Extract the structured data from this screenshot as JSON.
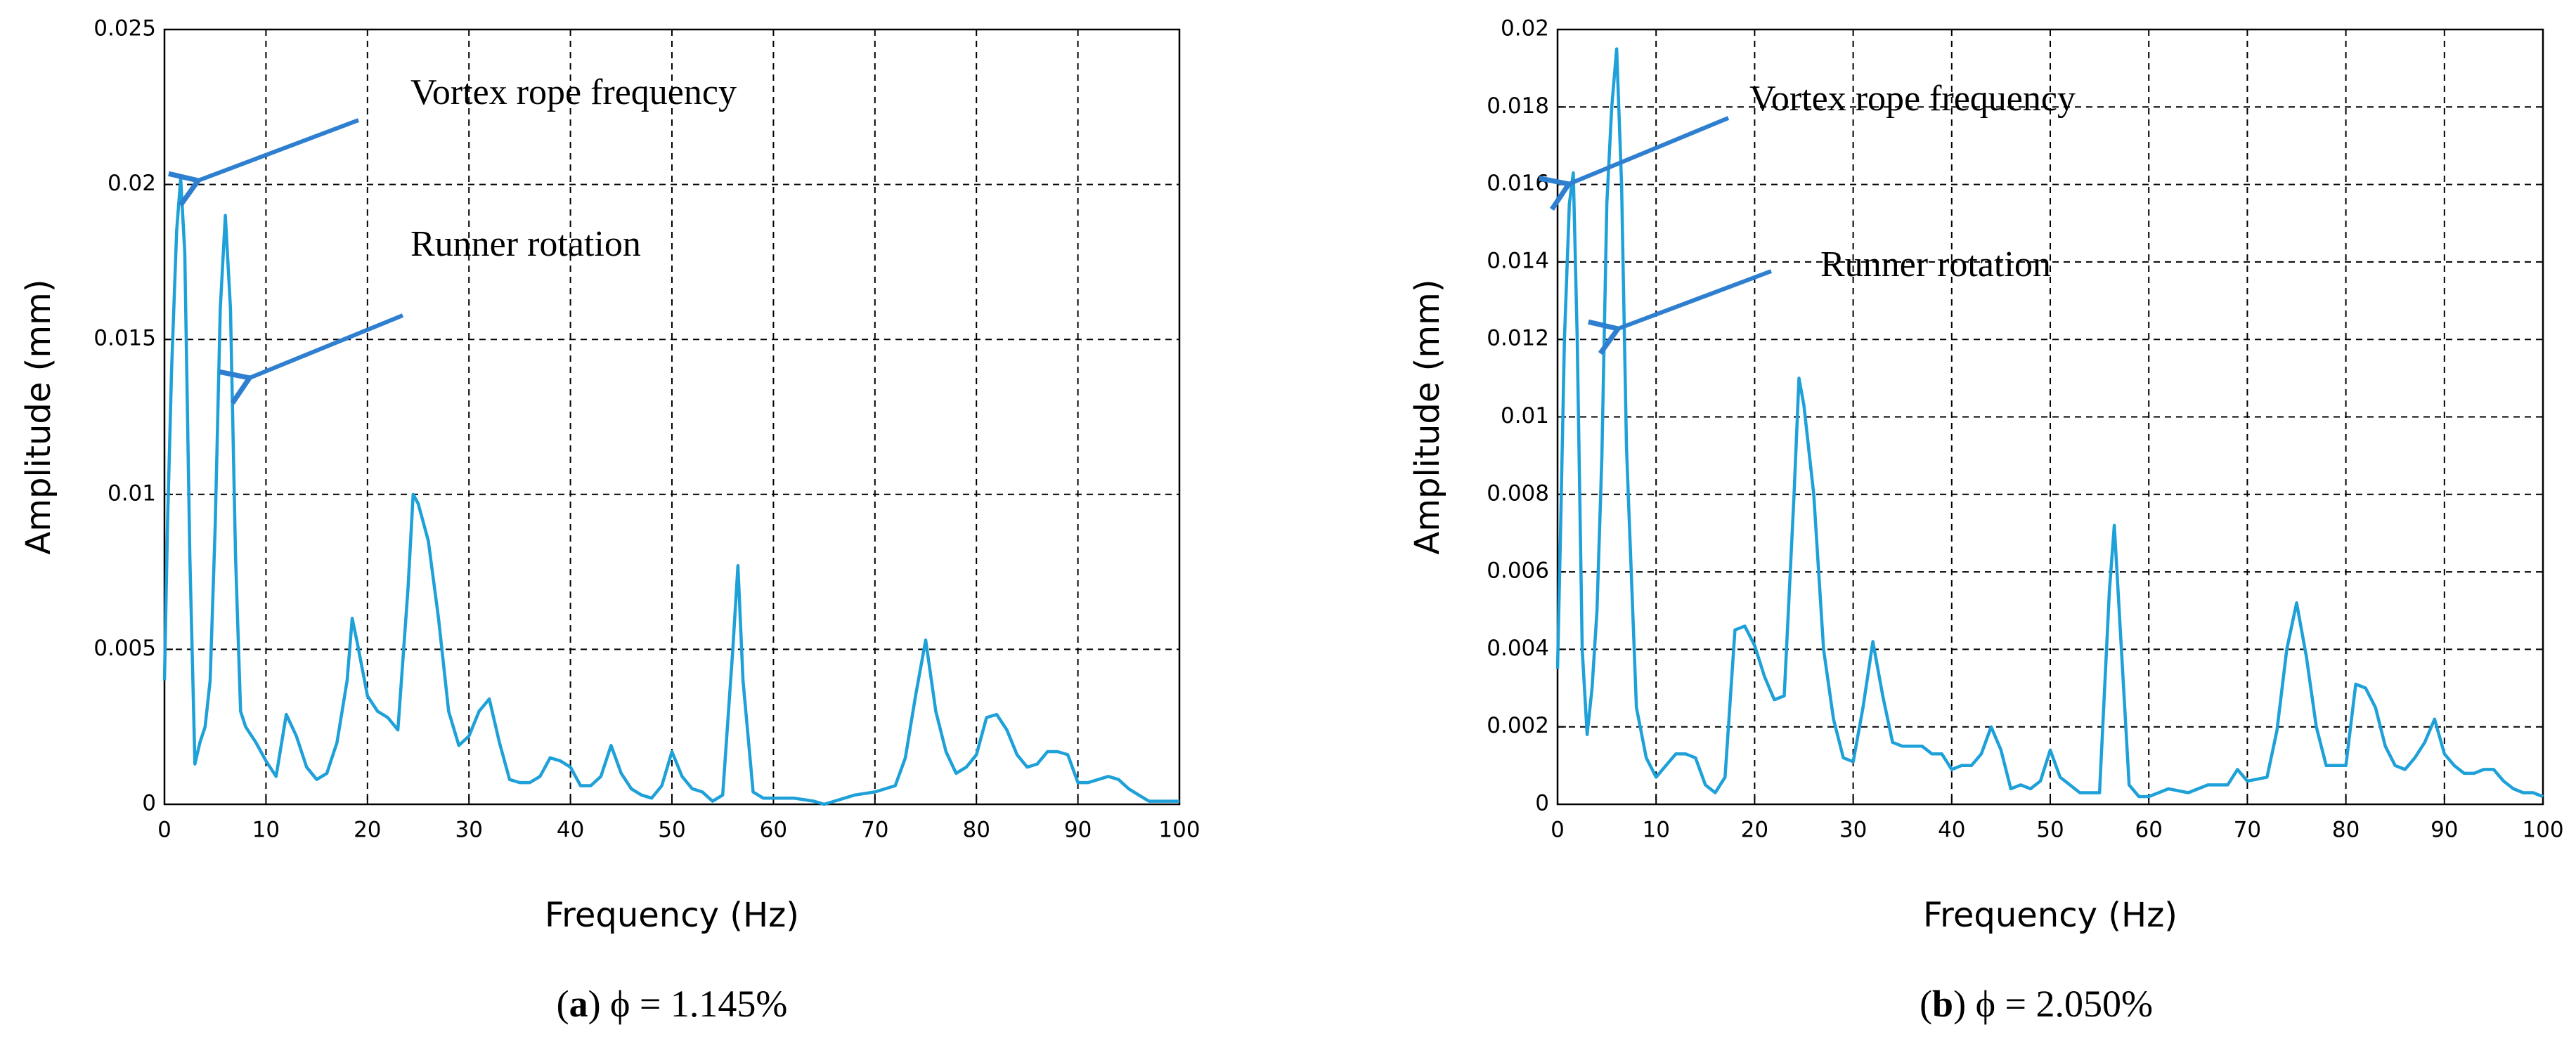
{
  "chart_data": [
    {
      "type": "line",
      "xlabel": "Frequency (Hz)",
      "ylabel": "Amplitude (mm)",
      "caption_parts": [
        "(",
        "a",
        ") ϕ = 1.145%"
      ],
      "annotations": [
        "Vortex rope frequency",
        "Runner rotation"
      ],
      "color": "#1ea0d8",
      "grid": true,
      "xlim": [
        0,
        100
      ],
      "xticks": [
        0,
        10,
        20,
        30,
        40,
        50,
        60,
        70,
        80,
        90,
        100
      ],
      "ylim": [
        0,
        0.025
      ],
      "yticks": [
        0,
        0.005,
        0.01,
        0.015,
        0.02,
        0.025
      ],
      "x": [
        0,
        0.3,
        0.7,
        1.2,
        1.6,
        2,
        2.5,
        3,
        3.5,
        4,
        4.5,
        5,
        5.5,
        6,
        6.5,
        7,
        7.5,
        8,
        9,
        10,
        11,
        12,
        13,
        14,
        15,
        16,
        17,
        18,
        18.5,
        19,
        20,
        21,
        22,
        23,
        24,
        24.5,
        25,
        26,
        27,
        28,
        29,
        30,
        31,
        32,
        33,
        34,
        35,
        36,
        37,
        38,
        39,
        40,
        41,
        42,
        43,
        44,
        45,
        46,
        47,
        48,
        49,
        50,
        51,
        52,
        53,
        54,
        55,
        56,
        56.5,
        57,
        58,
        59,
        60,
        62,
        64,
        65,
        66,
        68,
        70,
        72,
        73,
        74,
        75,
        76,
        77,
        78,
        79,
        80,
        81,
        82,
        83,
        84,
        85,
        86,
        87,
        88,
        89,
        90,
        91,
        92,
        93,
        94,
        95,
        96,
        97,
        98,
        100
      ],
      "values": [
        0.004,
        0.009,
        0.014,
        0.0185,
        0.0202,
        0.0178,
        0.008,
        0.0013,
        0.002,
        0.0025,
        0.004,
        0.009,
        0.016,
        0.019,
        0.016,
        0.008,
        0.003,
        0.0025,
        0.002,
        0.0014,
        0.0009,
        0.0029,
        0.0022,
        0.0012,
        0.0008,
        0.001,
        0.002,
        0.004,
        0.006,
        0.0052,
        0.0035,
        0.003,
        0.0028,
        0.0024,
        0.007,
        0.01,
        0.0097,
        0.0085,
        0.006,
        0.003,
        0.0019,
        0.0022,
        0.003,
        0.0034,
        0.002,
        0.0008,
        0.0007,
        0.0007,
        0.0009,
        0.0015,
        0.0014,
        0.0012,
        0.0006,
        0.0006,
        0.0009,
        0.0019,
        0.001,
        0.0005,
        0.0003,
        0.0002,
        0.0006,
        0.0017,
        0.0009,
        0.0005,
        0.0004,
        0.0001,
        0.0003,
        0.005,
        0.0077,
        0.004,
        0.0004,
        0.0002,
        0.0002,
        0.0002,
        0.0001,
        0,
        0.0001,
        0.0003,
        0.0004,
        0.0006,
        0.0015,
        0.0035,
        0.0053,
        0.003,
        0.0017,
        0.001,
        0.0012,
        0.0016,
        0.0028,
        0.0029,
        0.0024,
        0.0016,
        0.0012,
        0.0013,
        0.0017,
        0.0017,
        0.0016,
        0.0007,
        0.0007,
        0.0008,
        0.0009,
        0.0008,
        0.0005,
        0.0003,
        0.0001,
        0.0001,
        0.0001
      ]
    },
    {
      "type": "line",
      "xlabel": "Frequency (Hz)",
      "ylabel": "Amplitude (mm)",
      "caption_parts": [
        "(",
        "b",
        ") ϕ = 2.050%"
      ],
      "annotations": [
        "Vortex rope frequency",
        "Runner rotation"
      ],
      "color": "#1ea0d8",
      "grid": true,
      "xlim": [
        0,
        100
      ],
      "xticks": [
        0,
        10,
        20,
        30,
        40,
        50,
        60,
        70,
        80,
        90,
        100
      ],
      "ylim": [
        0,
        0.02
      ],
      "yticks": [
        0,
        0.002,
        0.004,
        0.006,
        0.008,
        0.01,
        0.012,
        0.014,
        0.016,
        0.018,
        0.02
      ],
      "x": [
        0,
        0.3,
        0.7,
        1.2,
        1.6,
        2,
        2.5,
        3,
        3.5,
        4,
        4.5,
        5,
        5.5,
        6,
        6.5,
        7,
        8,
        9,
        10,
        11,
        12,
        13,
        14,
        15,
        16,
        17,
        18,
        19,
        20,
        21,
        22,
        23,
        24,
        24.5,
        25,
        26,
        27,
        28,
        29,
        30,
        31,
        32,
        33,
        34,
        35,
        36,
        37,
        38,
        39,
        40,
        41,
        42,
        43,
        44,
        45,
        46,
        47,
        48,
        49,
        50,
        51,
        52,
        53,
        54,
        55,
        56,
        56.5,
        57,
        58,
        59,
        60,
        61,
        62,
        64,
        66,
        68,
        69,
        70,
        72,
        73,
        74,
        75,
        76,
        77,
        78,
        79,
        80,
        81,
        82,
        83,
        84,
        85,
        86,
        87,
        88,
        89,
        90,
        91,
        92,
        93,
        94,
        95,
        96,
        97,
        98,
        99,
        100
      ],
      "values": [
        0.0035,
        0.007,
        0.012,
        0.0155,
        0.0163,
        0.012,
        0.004,
        0.0018,
        0.003,
        0.005,
        0.009,
        0.0155,
        0.018,
        0.0195,
        0.016,
        0.0092,
        0.0025,
        0.0012,
        0.0007,
        0.001,
        0.0013,
        0.0013,
        0.0012,
        0.0005,
        0.0003,
        0.0007,
        0.0045,
        0.0046,
        0.0041,
        0.0033,
        0.0027,
        0.0028,
        0.008,
        0.011,
        0.0103,
        0.008,
        0.004,
        0.0022,
        0.0012,
        0.0011,
        0.0025,
        0.0042,
        0.0028,
        0.0016,
        0.0015,
        0.0015,
        0.0015,
        0.0013,
        0.0013,
        0.0009,
        0.001,
        0.001,
        0.0013,
        0.002,
        0.0014,
        0.0004,
        0.0005,
        0.0004,
        0.0006,
        0.0014,
        0.0007,
        0.0005,
        0.0003,
        0.0003,
        0.0003,
        0.0055,
        0.0072,
        0.005,
        0.0005,
        0.0002,
        0.0002,
        0.0003,
        0.0004,
        0.0003,
        0.0005,
        0.0005,
        0.0009,
        0.0006,
        0.0007,
        0.0019,
        0.004,
        0.0052,
        0.0038,
        0.002,
        0.001,
        0.001,
        0.001,
        0.0031,
        0.003,
        0.0025,
        0.0015,
        0.001,
        0.0009,
        0.0012,
        0.0016,
        0.0022,
        0.0013,
        0.001,
        0.0008,
        0.0008,
        0.0009,
        0.0009,
        0.0006,
        0.0004,
        0.0003,
        0.0003,
        0.0002
      ]
    }
  ]
}
